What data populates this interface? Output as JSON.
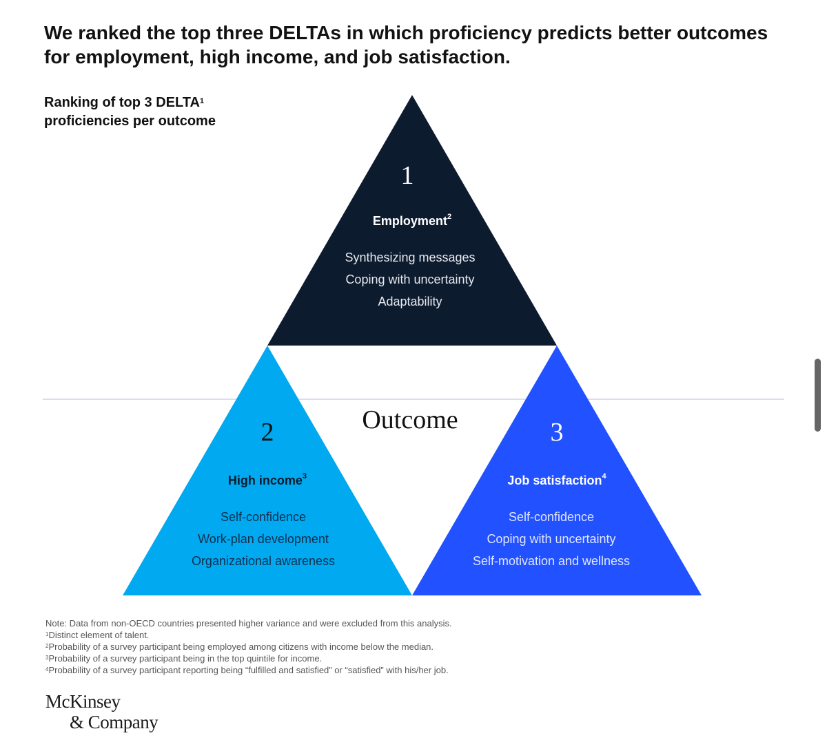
{
  "headline": "We ranked the top three DELTAs in which proficiency predicts better outcomes for employment, high income, and job satisfaction.",
  "subtitle": {
    "text": "Ranking of top 3 DELTA",
    "footnote": "1",
    "line2": "proficiencies per outcome"
  },
  "center_label": "Outcome",
  "colors": {
    "employment": "#0d1b2e",
    "high_income": "#00a9f0",
    "job_satisfaction": "#2251ff",
    "divider": "#d6def0"
  },
  "outcomes": {
    "employment": {
      "rank": "1",
      "title": "Employment",
      "footnote": "2",
      "items": [
        "Synthesizing messages",
        "Coping with uncertainty",
        "Adaptability"
      ]
    },
    "high_income": {
      "rank": "2",
      "title": "High income",
      "footnote": "3",
      "items": [
        "Self-confidence",
        "Work-plan development",
        "Organizational awareness"
      ]
    },
    "job_satisfaction": {
      "rank": "3",
      "title": "Job satisfaction",
      "footnote": "4",
      "items": [
        "Self-confidence",
        "Coping with uncertainty",
        "Self-motivation and wellness"
      ]
    }
  },
  "notes": {
    "note": "Note: Data from non-OECD countries presented higher variance and were excluded from this analysis.",
    "footnotes": [
      {
        "mark": "1",
        "text": "Distinct element of talent."
      },
      {
        "mark": "2",
        "text": "Probability of a survey participant being employed among citizens with income below the median."
      },
      {
        "mark": "3",
        "text": "Probability of a survey participant being in the top quintile for income."
      },
      {
        "mark": "4",
        "text": "Probability of a survey participant reporting being “fulfilled and satisfied” or “satisfied” with his/her job."
      }
    ]
  },
  "logo": {
    "line1": "McKinsey",
    "line2": "& Company"
  }
}
